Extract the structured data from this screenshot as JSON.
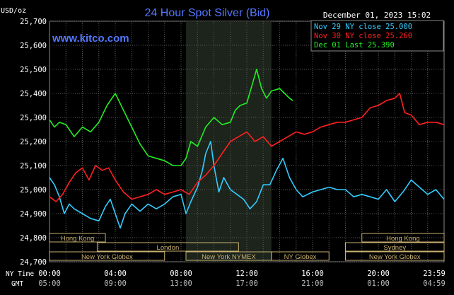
{
  "header": {
    "unit": "USD/oz",
    "title": "24 Hour Spot Silver (Bid)",
    "datetime": "December 01, 2023 15:02",
    "watermark": "www.kitco.com"
  },
  "legend": [
    {
      "text": "Nov 29 NY close 25.000",
      "color": "#33ccff"
    },
    {
      "text": "Nov 30 NY close 25.260",
      "color": "#ff2020"
    },
    {
      "text": "Dec 01 Last 25.390",
      "color": "#22ee22"
    }
  ],
  "axis_row_labels": {
    "ny": "NY Time",
    "gmt": "GMT"
  },
  "markets": [
    {
      "name": "Hong Kong",
      "start": 0,
      "end": 3.4,
      "row": 0
    },
    {
      "name": "London",
      "start": 2.9,
      "end": 11.5,
      "row": 1
    },
    {
      "name": "New York Globex",
      "start": 0,
      "end": 7.0,
      "row": 2
    },
    {
      "name": "New York NYMEX",
      "start": 8.3,
      "end": 13.5,
      "row": 2
    },
    {
      "name": "NY Globex",
      "start": 13.5,
      "end": 17.0,
      "row": 2
    },
    {
      "name": "Hong Kong",
      "start": 19.0,
      "end": 24.0,
      "row": 0
    },
    {
      "name": "Sydney",
      "start": 18.0,
      "end": 24.0,
      "row": 1
    },
    {
      "name": "New York Globex",
      "start": 18.0,
      "end": 24.0,
      "row": 2
    }
  ],
  "chart_data": {
    "type": "line",
    "title": "24 Hour Spot Silver (Bid)",
    "ylabel": "USD/oz",
    "ylim": [
      24.7,
      25.7
    ],
    "xlim": [
      0,
      24
    ],
    "grid": true,
    "legend_position": "top-right",
    "shaded_region": [
      8.3,
      13.5
    ],
    "y_ticks": [
      "25,700",
      "25,600",
      "25,500",
      "25,400",
      "25,300",
      "25,200",
      "25,100",
      "25,000",
      "24,900",
      "24,800",
      "24,700"
    ],
    "x_ticks_ny": [
      "00:00",
      "04:00",
      "08:00",
      "12:00",
      "16:00",
      "20:00",
      "23:59"
    ],
    "x_ticks_gmt": [
      "05:00",
      "09:00",
      "13:00",
      "17:00",
      "21:00",
      "01:00",
      "04:59"
    ],
    "series": [
      {
        "name": "Nov 29 NY close 25.000",
        "color": "#33ccff",
        "x": [
          0,
          0.3,
          0.6,
          0.9,
          1.2,
          1.5,
          2.0,
          2.5,
          3.0,
          3.4,
          3.7,
          4.0,
          4.3,
          4.6,
          5.0,
          5.5,
          6.0,
          6.5,
          7.0,
          7.5,
          8.0,
          8.3,
          8.6,
          9.0,
          9.3,
          9.5,
          9.8,
          10.0,
          10.3,
          10.6,
          11.0,
          11.4,
          11.8,
          12.2,
          12.6,
          13.0,
          13.4,
          13.8,
          14.2,
          14.6,
          15.0,
          15.4,
          16.0,
          16.5,
          17.0,
          17.5,
          18.0,
          18.5,
          19.0,
          19.5,
          20.0,
          20.5,
          21.0,
          21.5,
          22.0,
          22.5,
          23.0,
          23.5,
          23.99
        ],
        "y": [
          25.05,
          25.02,
          24.97,
          24.9,
          24.94,
          24.92,
          24.9,
          24.88,
          24.87,
          24.93,
          24.96,
          24.9,
          24.84,
          24.9,
          24.94,
          24.91,
          24.94,
          24.92,
          24.94,
          24.97,
          24.98,
          24.9,
          24.95,
          25.01,
          25.08,
          25.15,
          25.2,
          25.1,
          24.99,
          25.05,
          25.0,
          24.98,
          24.96,
          24.92,
          24.95,
          25.02,
          25.02,
          25.08,
          25.13,
          25.05,
          25.0,
          24.97,
          24.99,
          25.0,
          25.01,
          25.0,
          25.0,
          24.97,
          24.98,
          24.97,
          24.96,
          25.0,
          24.95,
          24.99,
          25.04,
          25.01,
          24.98,
          25.0,
          24.96
        ]
      },
      {
        "name": "Nov 30 NY close 25.260",
        "color": "#ff2020",
        "x": [
          0,
          0.4,
          0.8,
          1.2,
          1.6,
          2.0,
          2.4,
          2.8,
          3.2,
          3.6,
          4.0,
          4.5,
          5.0,
          5.5,
          6.0,
          6.5,
          7.0,
          7.5,
          8.0,
          8.5,
          9.0,
          9.5,
          10.0,
          10.5,
          11.0,
          11.5,
          12.0,
          12.5,
          13.0,
          13.5,
          14.0,
          14.5,
          15.0,
          15.5,
          16.0,
          16.5,
          17.0,
          17.5,
          18.0,
          18.5,
          19.0,
          19.5,
          20.0,
          20.5,
          21.0,
          21.3,
          21.6,
          22.0,
          22.5,
          23.0,
          23.5,
          23.99
        ],
        "y": [
          24.97,
          24.95,
          24.98,
          25.03,
          25.07,
          25.09,
          25.04,
          25.1,
          25.08,
          25.09,
          25.04,
          24.99,
          24.96,
          24.97,
          24.98,
          25.0,
          24.98,
          24.99,
          25.0,
          24.98,
          25.03,
          25.06,
          25.1,
          25.15,
          25.2,
          25.22,
          25.24,
          25.2,
          25.22,
          25.18,
          25.2,
          25.22,
          25.24,
          25.23,
          25.24,
          25.26,
          25.27,
          25.28,
          25.28,
          25.29,
          25.3,
          25.34,
          25.35,
          25.37,
          25.38,
          25.4,
          25.32,
          25.31,
          25.27,
          25.28,
          25.28,
          25.27
        ]
      },
      {
        "name": "Dec 01 Last 25.390",
        "color": "#22ee22",
        "x": [
          0,
          0.3,
          0.6,
          1.0,
          1.5,
          2.0,
          2.5,
          3.0,
          3.5,
          4.0,
          4.5,
          5.0,
          5.5,
          6.0,
          6.5,
          7.0,
          7.5,
          8.0,
          8.3,
          8.6,
          9.0,
          9.5,
          10.0,
          10.5,
          11.0,
          11.3,
          11.6,
          12.0,
          12.3,
          12.6,
          12.9,
          13.2,
          13.5,
          14.0,
          14.3,
          14.6,
          14.8
        ],
        "y": [
          25.29,
          25.26,
          25.28,
          25.27,
          25.22,
          25.26,
          25.24,
          25.28,
          25.35,
          25.4,
          25.33,
          25.26,
          25.19,
          25.14,
          25.13,
          25.12,
          25.1,
          25.1,
          25.13,
          25.2,
          25.18,
          25.26,
          25.3,
          25.27,
          25.28,
          25.33,
          25.35,
          25.36,
          25.43,
          25.5,
          25.42,
          25.38,
          25.41,
          25.42,
          25.4,
          25.38,
          25.37
        ]
      }
    ]
  }
}
